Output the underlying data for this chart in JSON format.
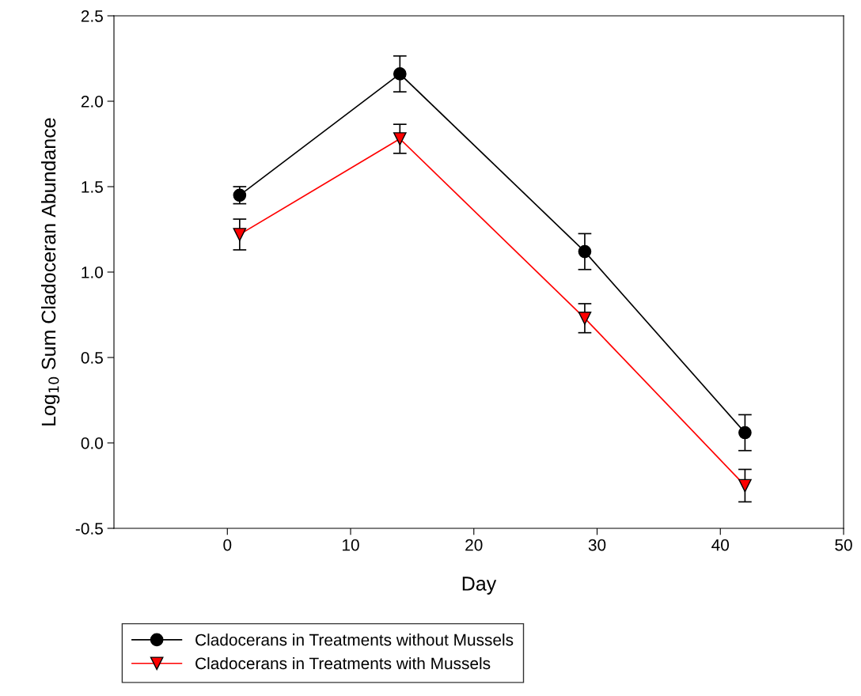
{
  "chart_data": {
    "type": "line",
    "xlabel": "Day",
    "ylabel": "Log$_{10}$ Sum Cladoceran Abundance",
    "xlim": [
      -9.2,
      50
    ],
    "xticks": [
      0,
      10,
      20,
      30,
      40,
      50
    ],
    "ylim": [
      -0.5,
      2.5
    ],
    "yticks": [
      {
        "value": -0.5,
        "label": "-0.5"
      },
      {
        "value": 0,
        "label": "0.0"
      },
      0.5,
      {
        "value": 1,
        "label": "1.0"
      },
      1.5,
      {
        "value": 2,
        "label": "2.0"
      },
      2.5
    ],
    "grid": false,
    "legend": "bottom left",
    "line_style": "solid",
    "series": [
      {
        "name": "Cladocerans in Treatments without Mussels",
        "color": "#000000",
        "marker": "circle",
        "x": [
          1,
          14,
          29,
          42
        ],
        "values": [
          1.45,
          2.16,
          1.12,
          0.06
        ],
        "errors": [
          0.05,
          0.105,
          0.105,
          0.105
        ]
      },
      {
        "name": "Cladocerans in Treatments with Mussels",
        "color": "#ff0000",
        "marker": "triangle",
        "x": [
          1,
          14,
          29,
          42
        ],
        "values": [
          1.22,
          1.78,
          0.73,
          -0.25
        ],
        "errors": [
          0.09,
          0.085,
          0.085,
          0.095
        ]
      }
    ]
  }
}
